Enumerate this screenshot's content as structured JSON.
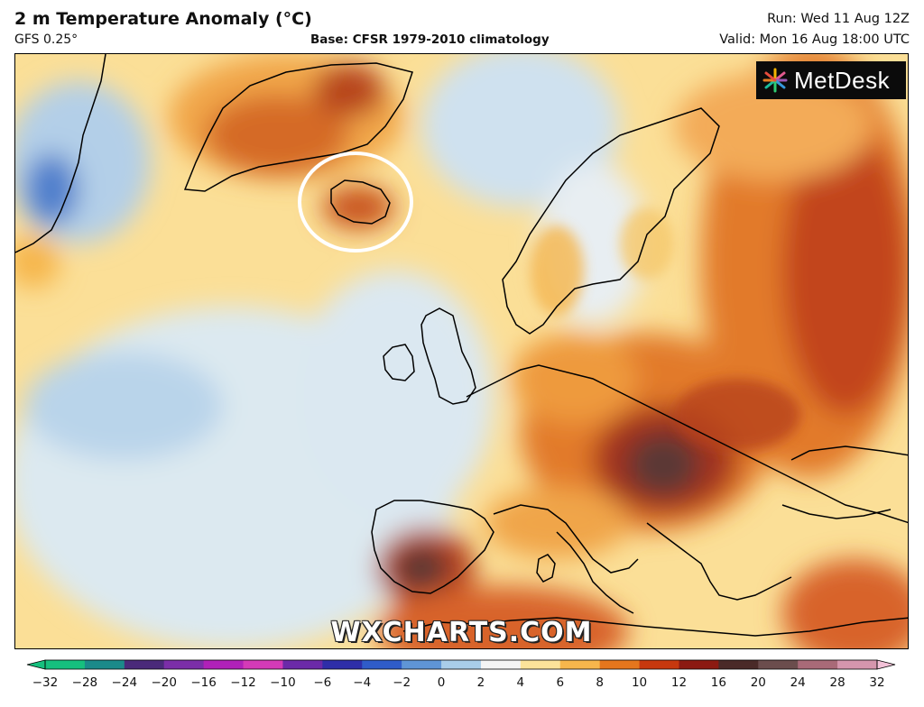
{
  "header": {
    "title": "2 m Temperature Anomaly (°C)",
    "model": "GFS 0.25°",
    "base": "Base: CFSR 1979-2010 climatology",
    "run": "Run: Wed 11 Aug 12Z",
    "valid": "Valid: Mon 16 Aug 18:00 UTC"
  },
  "logo": {
    "text": "MetDesk",
    "icon": "starburst-icon"
  },
  "watermark": "WXCHARTS.COM",
  "colorbar": {
    "ticks": [
      "−32",
      "−28",
      "−24",
      "−20",
      "−16",
      "−12",
      "−10",
      "−6",
      "−4",
      "−2",
      "0",
      "2",
      "4",
      "6",
      "8",
      "10",
      "12",
      "16",
      "20",
      "24",
      "28",
      "32"
    ],
    "colors": [
      "#16c07e",
      "#1b8a8a",
      "#4a2a7a",
      "#7b2ea8",
      "#b021b8",
      "#d43ab7",
      "#6b2aa8",
      "#2e2ea8",
      "#2f5cc9",
      "#5f95d6",
      "#a9cde9",
      "#f4f4f4",
      "#fbe39a",
      "#f6b64c",
      "#e5761d",
      "#c7380e",
      "#8c1a12",
      "#4a2a28",
      "#6b4d4d",
      "#a96a78",
      "#d596ad",
      "#f2c1d7"
    ],
    "highlight": {
      "color": "#ffffff",
      "label": "Iceland anomaly circle"
    }
  }
}
